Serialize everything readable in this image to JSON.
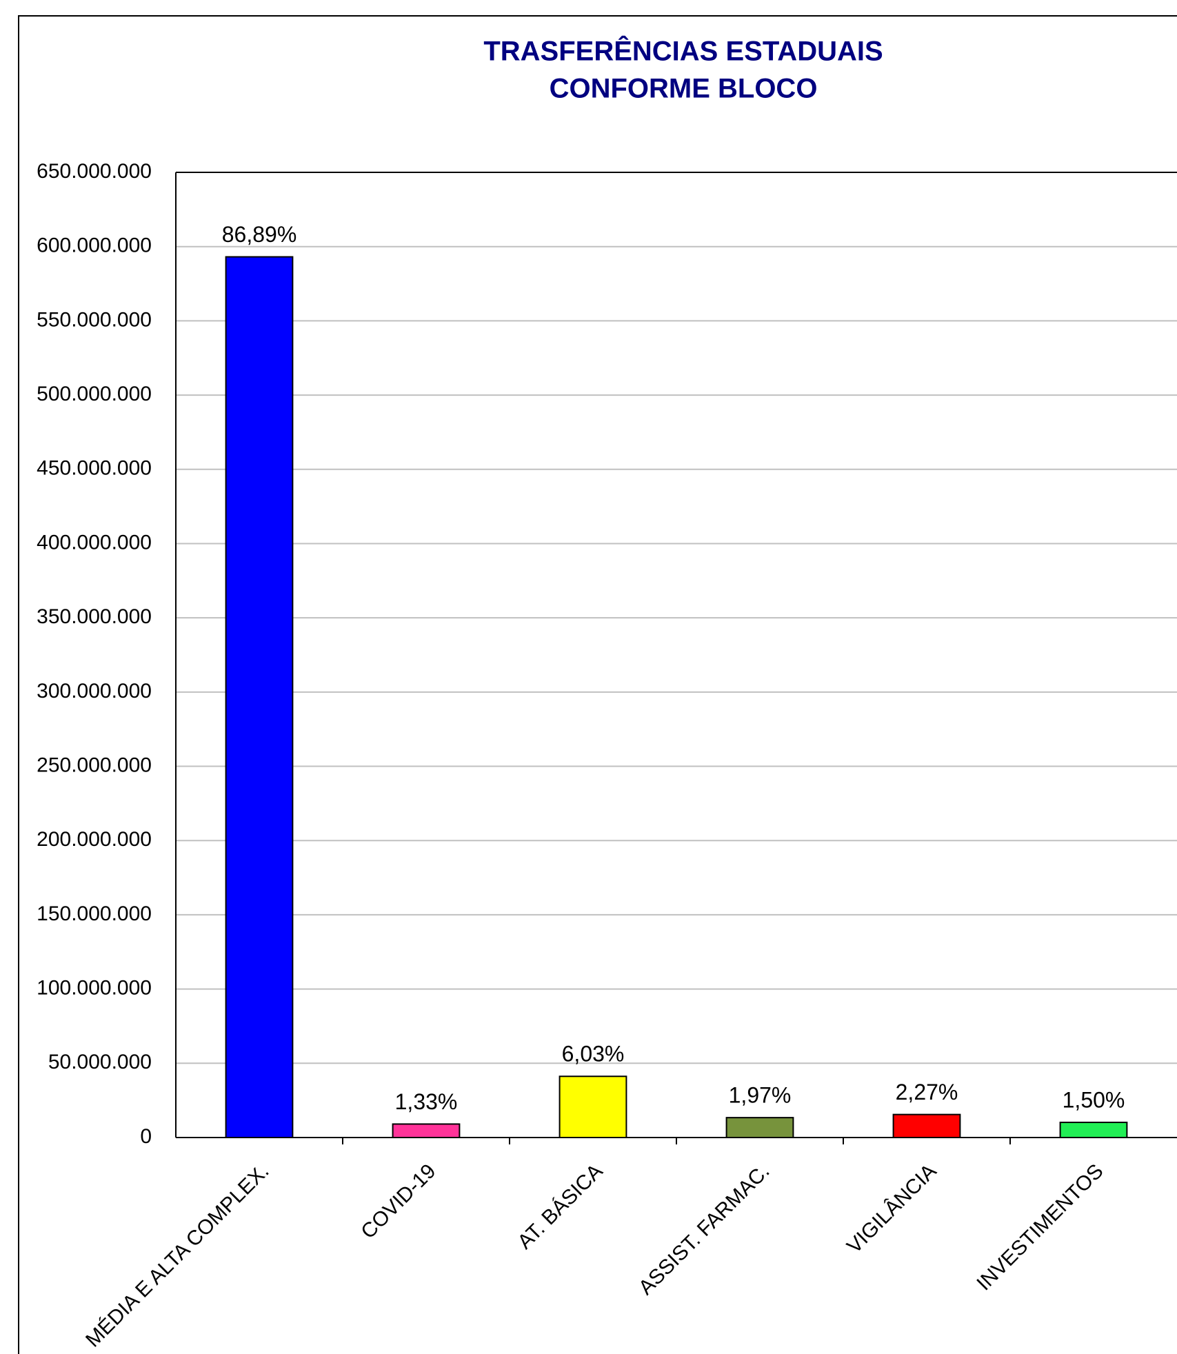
{
  "chart_data": {
    "type": "bar",
    "title": [
      "TRASFERÊNCIAS ESTADUAIS",
      "CONFORME BLOCO"
    ],
    "categories": [
      "MÉDIA E ALTA COMPLEX.",
      "COVID-19",
      "AT. BÁSICA",
      "ASSIST. FARMAC.",
      "VIGILÂNCIA",
      "INVESTIMENTOS"
    ],
    "values": [
      593100000,
      9080000,
      41200000,
      13400000,
      15500000,
      10200000
    ],
    "percent_labels": [
      "86,89%",
      "1,33%",
      "6,03%",
      "1,97%",
      "2,27%",
      "1,50%"
    ],
    "colors": [
      "#0000ff",
      "#ff3399",
      "#ffff00",
      "#77933c",
      "#ff0000",
      "#22ee55"
    ],
    "ylim": [
      0,
      650000000
    ],
    "yticks": [
      0,
      {
        "value": 50000000,
        "label": "50.000.000"
      },
      {
        "value": 100000000,
        "label": "100.000.000"
      },
      {
        "value": 150000000,
        "label": "150.000.000"
      },
      {
        "value": 200000000,
        "label": "200.000.000"
      },
      {
        "value": 250000000,
        "label": "250.000.000"
      },
      {
        "value": 300000000,
        "label": "300.000.000"
      },
      {
        "value": 350000000,
        "label": "350.000.000"
      },
      {
        "value": 400000000,
        "label": "400.000.000"
      },
      {
        "value": 450000000,
        "label": "450.000.000"
      },
      {
        "value": 500000000,
        "label": "500.000.000"
      },
      {
        "value": 550000000,
        "label": "550.000.000"
      },
      {
        "value": 600000000,
        "label": "600.000.000"
      },
      {
        "value": 650000000,
        "label": "650.000.000"
      }
    ],
    "grid": true
  }
}
